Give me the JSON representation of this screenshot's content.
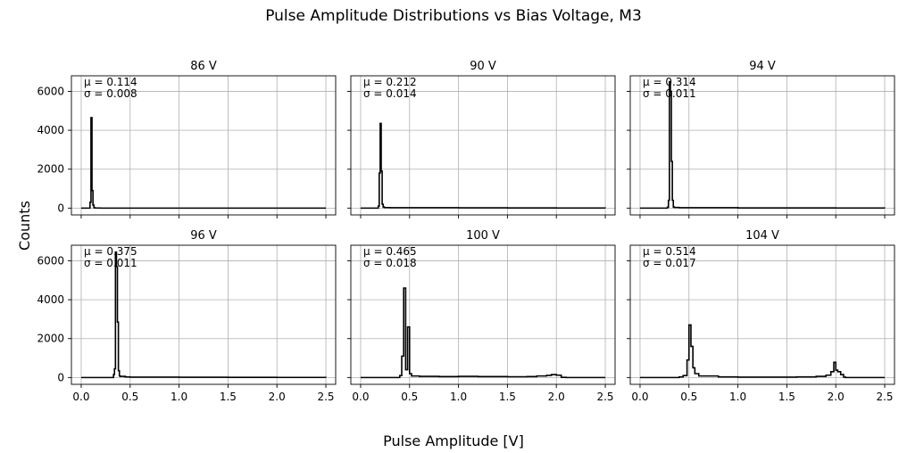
{
  "figure": {
    "title": "Pulse Amplitude Distributions vs Bias Voltage, M3",
    "xlabel": "Pulse Amplitude [V]",
    "ylabel": "Counts"
  },
  "chart_data": [
    {
      "type": "line",
      "title": "86 V",
      "mu": "μ = 0.114",
      "sigma": "σ = 0.008",
      "xlim": [
        -0.1,
        2.6
      ],
      "ylim": [
        -350,
        6800
      ],
      "xticks": [
        "0.0",
        "0.5",
        "1.0",
        "1.5",
        "2.0",
        "2.5"
      ],
      "yticks": [
        "0",
        "2000",
        "4000",
        "6000"
      ],
      "grid": true,
      "step": true,
      "x": [
        0.0,
        0.08,
        0.09,
        0.1,
        0.11,
        0.12,
        0.13,
        0.14,
        0.2,
        0.5,
        1.0,
        1.5,
        2.0,
        2.5
      ],
      "y": [
        0,
        0,
        300,
        4650,
        900,
        150,
        20,
        5,
        0,
        0,
        0,
        0,
        0,
        0
      ]
    },
    {
      "type": "line",
      "title": "90 V",
      "mu": "μ = 0.212",
      "sigma": "σ = 0.014",
      "xlim": [
        -0.1,
        2.6
      ],
      "ylim": [
        -350,
        6800
      ],
      "xticks": [
        "0.0",
        "0.5",
        "1.0",
        "1.5",
        "2.0",
        "2.5"
      ],
      "yticks": [
        "0",
        "2000",
        "4000",
        "6000"
      ],
      "grid": true,
      "step": true,
      "x": [
        0.0,
        0.17,
        0.18,
        0.19,
        0.2,
        0.21,
        0.22,
        0.23,
        0.24,
        0.25,
        0.3,
        1.0,
        1.5,
        2.0,
        2.5
      ],
      "y": [
        0,
        0,
        100,
        1800,
        4350,
        1900,
        200,
        60,
        30,
        25,
        20,
        15,
        10,
        5,
        0
      ]
    },
    {
      "type": "line",
      "title": "94 V",
      "mu": "μ = 0.314",
      "sigma": "σ = 0.011",
      "xlim": [
        -0.1,
        2.6
      ],
      "ylim": [
        -350,
        6800
      ],
      "xticks": [
        "0.0",
        "0.5",
        "1.0",
        "1.5",
        "2.0",
        "2.5"
      ],
      "yticks": [
        "0",
        "2000",
        "4000",
        "6000"
      ],
      "grid": true,
      "step": true,
      "x": [
        0.0,
        0.27,
        0.28,
        0.29,
        0.3,
        0.31,
        0.32,
        0.33,
        0.34,
        0.35,
        0.4,
        1.0,
        2.0,
        2.5
      ],
      "y": [
        0,
        0,
        50,
        400,
        6500,
        6000,
        2400,
        400,
        60,
        30,
        20,
        10,
        5,
        0
      ]
    },
    {
      "type": "line",
      "title": "96 V",
      "mu": "μ = 0.375",
      "sigma": "σ = 0.011",
      "xlim": [
        -0.1,
        2.6
      ],
      "ylim": [
        -350,
        6800
      ],
      "xticks": [
        "0.0",
        "0.5",
        "1.0",
        "1.5",
        "2.0",
        "2.5"
      ],
      "yticks": [
        "0",
        "2000",
        "4000",
        "6000"
      ],
      "grid": true,
      "step": true,
      "x": [
        0.0,
        0.3,
        0.33,
        0.34,
        0.35,
        0.36,
        0.37,
        0.38,
        0.39,
        0.4,
        0.45,
        0.5,
        1.0,
        1.5,
        2.0,
        2.5
      ],
      "y": [
        0,
        0,
        150,
        450,
        6450,
        5700,
        2850,
        350,
        80,
        60,
        30,
        20,
        15,
        10,
        5,
        0
      ]
    },
    {
      "type": "line",
      "title": "100 V",
      "mu": "μ = 0.465",
      "sigma": "σ = 0.018",
      "xlim": [
        -0.1,
        2.6
      ],
      "ylim": [
        -350,
        6800
      ],
      "xticks": [
        "0.0",
        "0.5",
        "1.0",
        "1.5",
        "2.0",
        "2.5"
      ],
      "yticks": [
        "0",
        "2000",
        "4000",
        "6000"
      ],
      "grid": true,
      "step": true,
      "x": [
        0.0,
        0.38,
        0.4,
        0.42,
        0.44,
        0.46,
        0.48,
        0.5,
        0.52,
        0.6,
        0.8,
        1.0,
        1.2,
        1.5,
        1.7,
        1.8,
        1.9,
        1.95,
        2.0,
        2.05,
        2.1,
        2.5
      ],
      "y": [
        0,
        0,
        100,
        1100,
        4600,
        400,
        2600,
        200,
        80,
        60,
        50,
        60,
        50,
        40,
        50,
        80,
        110,
        150,
        120,
        10,
        0,
        0
      ]
    },
    {
      "type": "line",
      "title": "104 V",
      "mu": "μ = 0.514",
      "sigma": "σ = 0.017",
      "xlim": [
        -0.1,
        2.6
      ],
      "ylim": [
        -350,
        6800
      ],
      "xticks": [
        "0.0",
        "0.5",
        "1.0",
        "1.5",
        "2.0",
        "2.5"
      ],
      "yticks": [
        "0",
        "2000",
        "4000",
        "6000"
      ],
      "grid": true,
      "step": true,
      "x": [
        0.0,
        0.35,
        0.4,
        0.44,
        0.46,
        0.48,
        0.5,
        0.52,
        0.54,
        0.56,
        0.6,
        0.8,
        1.0,
        1.3,
        1.6,
        1.8,
        1.9,
        1.95,
        1.98,
        2.0,
        2.02,
        2.05,
        2.08,
        2.1,
        2.5
      ],
      "y": [
        0,
        0,
        30,
        100,
        100,
        900,
        2700,
        1600,
        500,
        200,
        80,
        30,
        20,
        20,
        30,
        60,
        120,
        300,
        780,
        380,
        300,
        150,
        20,
        0,
        0
      ]
    }
  ]
}
